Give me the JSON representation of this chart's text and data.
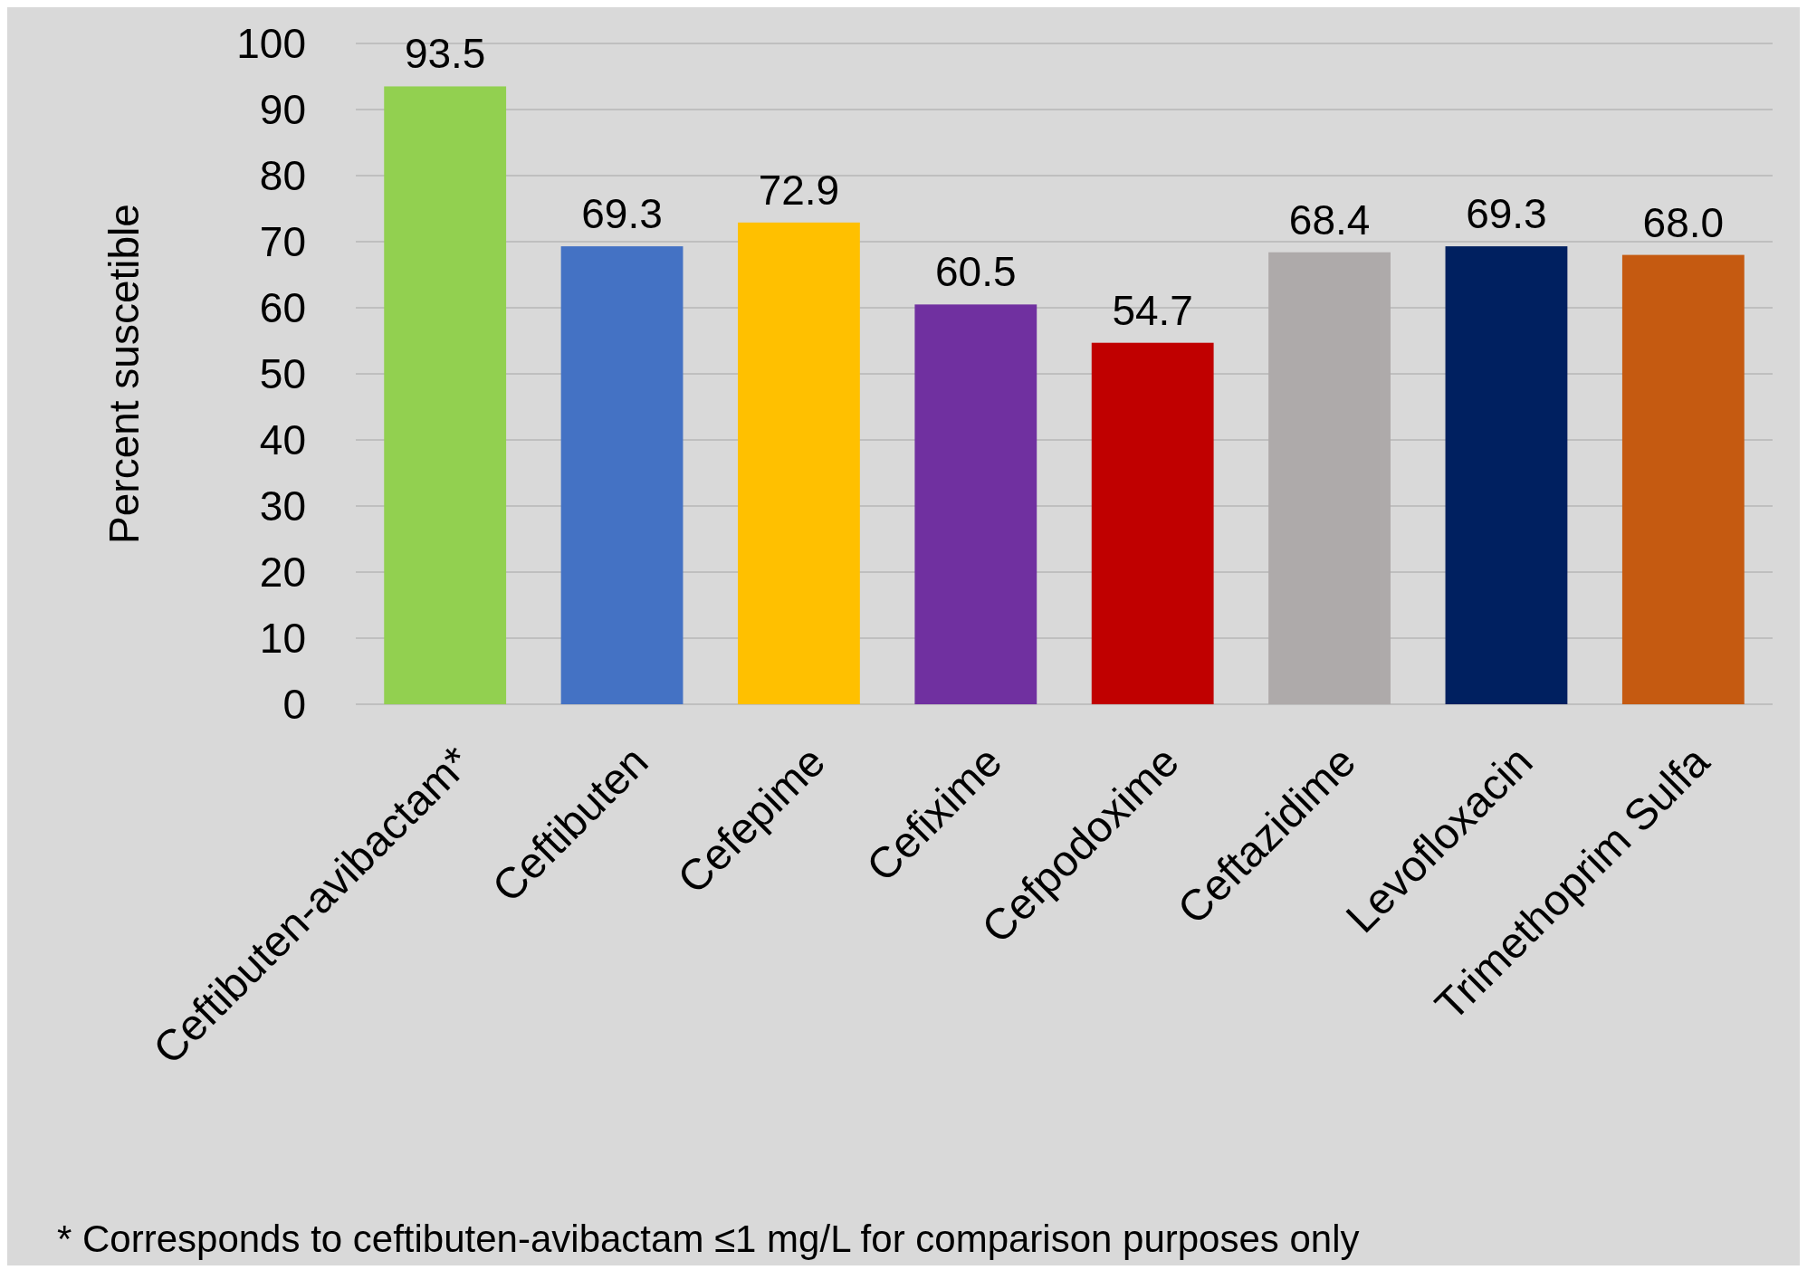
{
  "chart_data": {
    "type": "bar",
    "ylabel": "Percent suscetible",
    "categories": [
      "Ceftibuten-avibactam*",
      "Ceftibuten",
      "Cefepime",
      "Cefixime",
      "Cefpodoxime",
      "Ceftazidime",
      "Levofloxacin",
      "Trimethoprim Sulfa"
    ],
    "values": [
      93.5,
      69.3,
      72.9,
      60.5,
      54.7,
      68.4,
      69.3,
      68.0
    ],
    "value_labels": [
      "93.5",
      "69.3",
      "72.9",
      "60.5",
      "54.7",
      "68.4",
      "69.3",
      "68.0"
    ],
    "colors": [
      "#92d050",
      "#4472c4",
      "#ffc000",
      "#7030a0",
      "#c00000",
      "#aeaaaa",
      "#002060",
      "#c55a11"
    ],
    "ylim": [
      0,
      100
    ],
    "yticks": [
      0,
      10,
      20,
      30,
      40,
      50,
      60,
      70,
      80,
      90,
      100
    ],
    "grid": "y",
    "annotations": [
      "* Corresponds to ceftibuten-avibactam ≤1 mg/L for comparison purposes only"
    ]
  }
}
